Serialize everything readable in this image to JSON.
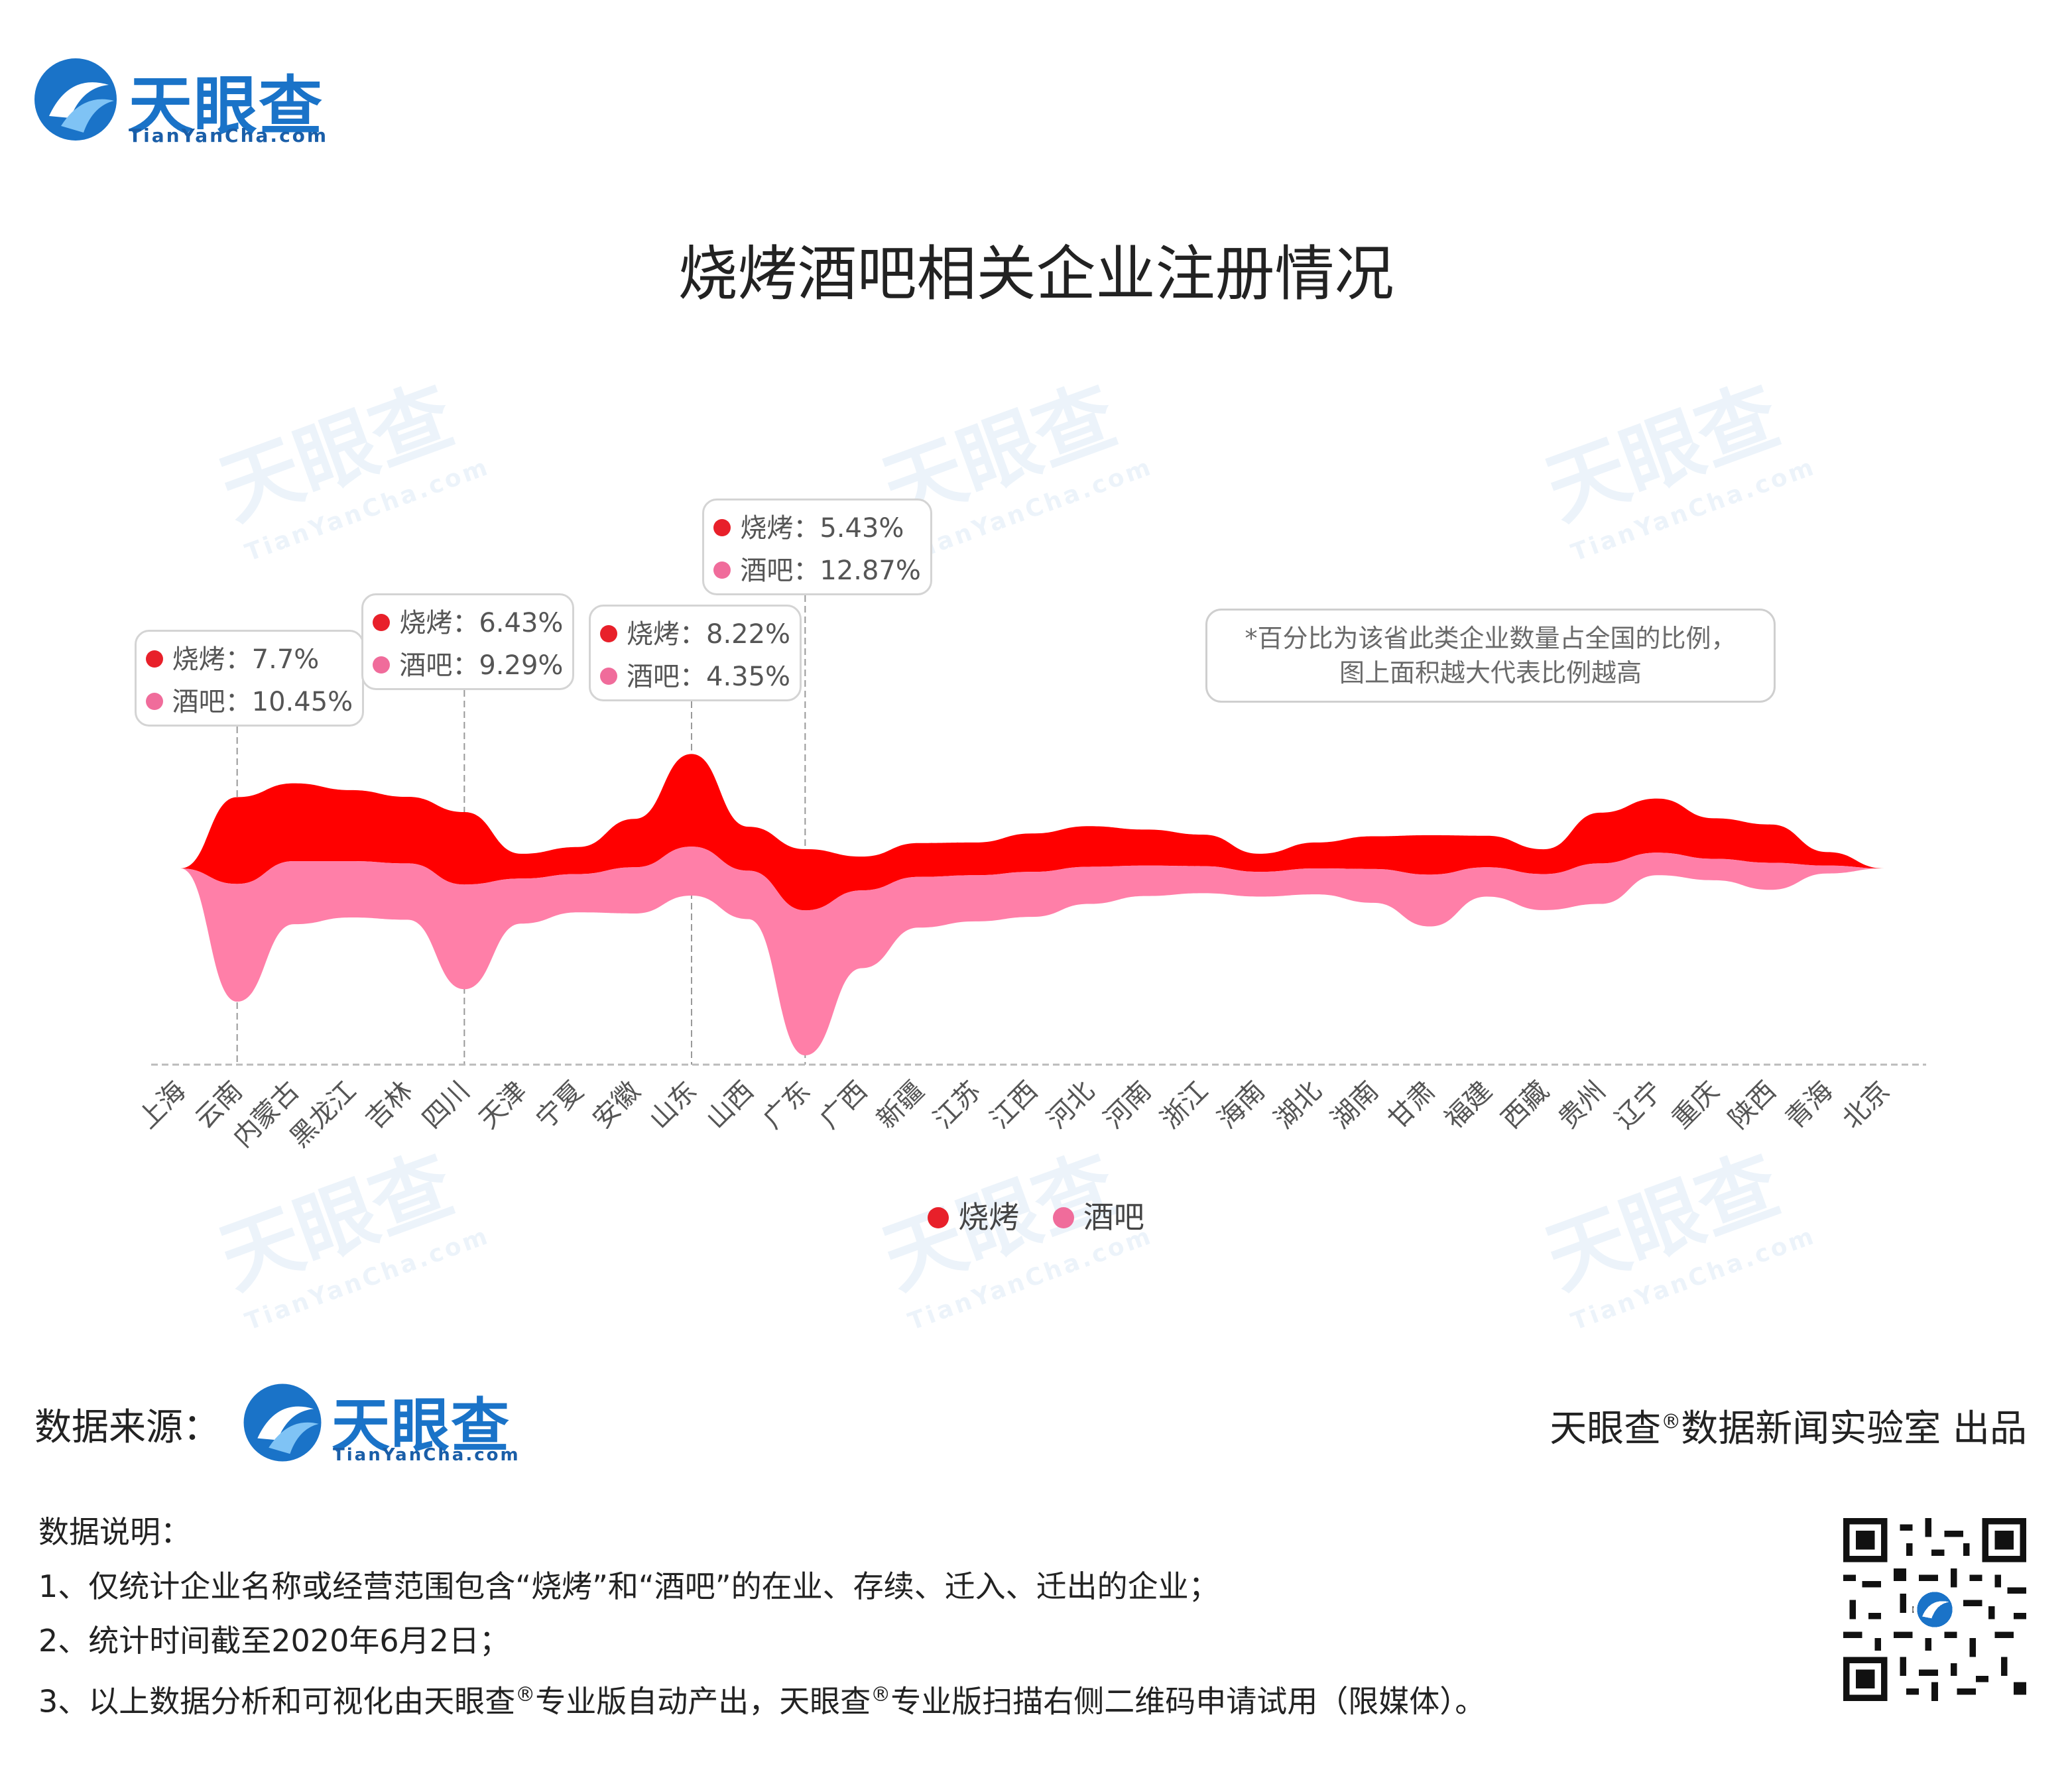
{
  "logo": {
    "cn": "天眼查",
    "en": "TianYanCha.com"
  },
  "title": "烧烤酒吧相关企业注册情况",
  "note": {
    "line1": "*百分比为该省此类企业数量占全国的比例，",
    "line2": "图上面积越大代表比例越高"
  },
  "colors": {
    "bbq": "#ff0000",
    "bar": "#ff7fa8",
    "bbq_dot": "#e8202a",
    "bar_dot": "#f06c9b",
    "axis": "#bbbbbb",
    "brand": "#1a73c8"
  },
  "tooltips": [
    {
      "province": "云南",
      "bbq": "烧烤：7.7%",
      "bar": "酒吧：10.45%"
    },
    {
      "province": "四川",
      "bbq": "烧烤：6.43%",
      "bar": "酒吧：9.29%"
    },
    {
      "province": "山东",
      "bbq": "烧烤：8.22%",
      "bar": "酒吧：4.35%"
    },
    {
      "province": "广东",
      "bbq": "烧烤：5.43%",
      "bar": "酒吧：12.87%"
    }
  ],
  "legend": {
    "bbq": "烧烤",
    "bar": "酒吧"
  },
  "chart_data": {
    "type": "area",
    "subtype": "streamgraph",
    "title": "烧烤酒吧相关企业注册情况",
    "categories": [
      "上海",
      "云南",
      "内蒙古",
      "黑龙江",
      "吉林",
      "四川",
      "天津",
      "宁夏",
      "安徽",
      "山东",
      "山西",
      "广东",
      "广西",
      "新疆",
      "江苏",
      "江西",
      "河北",
      "河南",
      "浙江",
      "海南",
      "湖北",
      "湖南",
      "甘肃",
      "福建",
      "西藏",
      "贵州",
      "辽宁",
      "重庆",
      "陕西",
      "青海",
      "北京"
    ],
    "series": [
      {
        "name": "烧烤",
        "values": [
          0,
          7.7,
          6.9,
          6.3,
          5.9,
          6.43,
          2.2,
          2.4,
          4.3,
          8.22,
          3.9,
          5.43,
          3.0,
          3.0,
          2.9,
          3.4,
          3.6,
          3.2,
          2.8,
          1.6,
          2.3,
          2.9,
          3.5,
          2.8,
          2.2,
          4.5,
          4.8,
          3.6,
          3.4,
          1.2,
          0
        ]
      },
      {
        "name": "酒吧",
        "values": [
          0,
          10.45,
          5.6,
          5.0,
          5.0,
          9.29,
          4.0,
          3.4,
          4.1,
          4.35,
          4.3,
          12.87,
          6.9,
          4.5,
          4.1,
          4.0,
          3.3,
          2.7,
          2.4,
          2.2,
          2.3,
          3.0,
          4.6,
          2.6,
          3.2,
          3.6,
          2.0,
          1.9,
          2.4,
          0.7,
          0
        ]
      }
    ],
    "legend_position": "bottom",
    "grid": false
  },
  "footer": {
    "source_label": "数据来源：",
    "lab": "天眼查",
    "lab_reg": "®",
    "lab_rest": "数据新闻实验室 出品",
    "notes_title": "数据说明：",
    "note1": "1、仅统计企业名称或经营范围包含“烧烤”和“酒吧”的在业、存续、迁入、迁出的企业；",
    "note2": "2、统计时间截至2020年6月2日；",
    "note3a": "3、以上数据分析和可视化由天眼查",
    "note3b": "专业版自动产出，天眼查",
    "note3c": "专业版扫描右侧二维码申请试用（限媒体）。",
    "reg": "®"
  }
}
